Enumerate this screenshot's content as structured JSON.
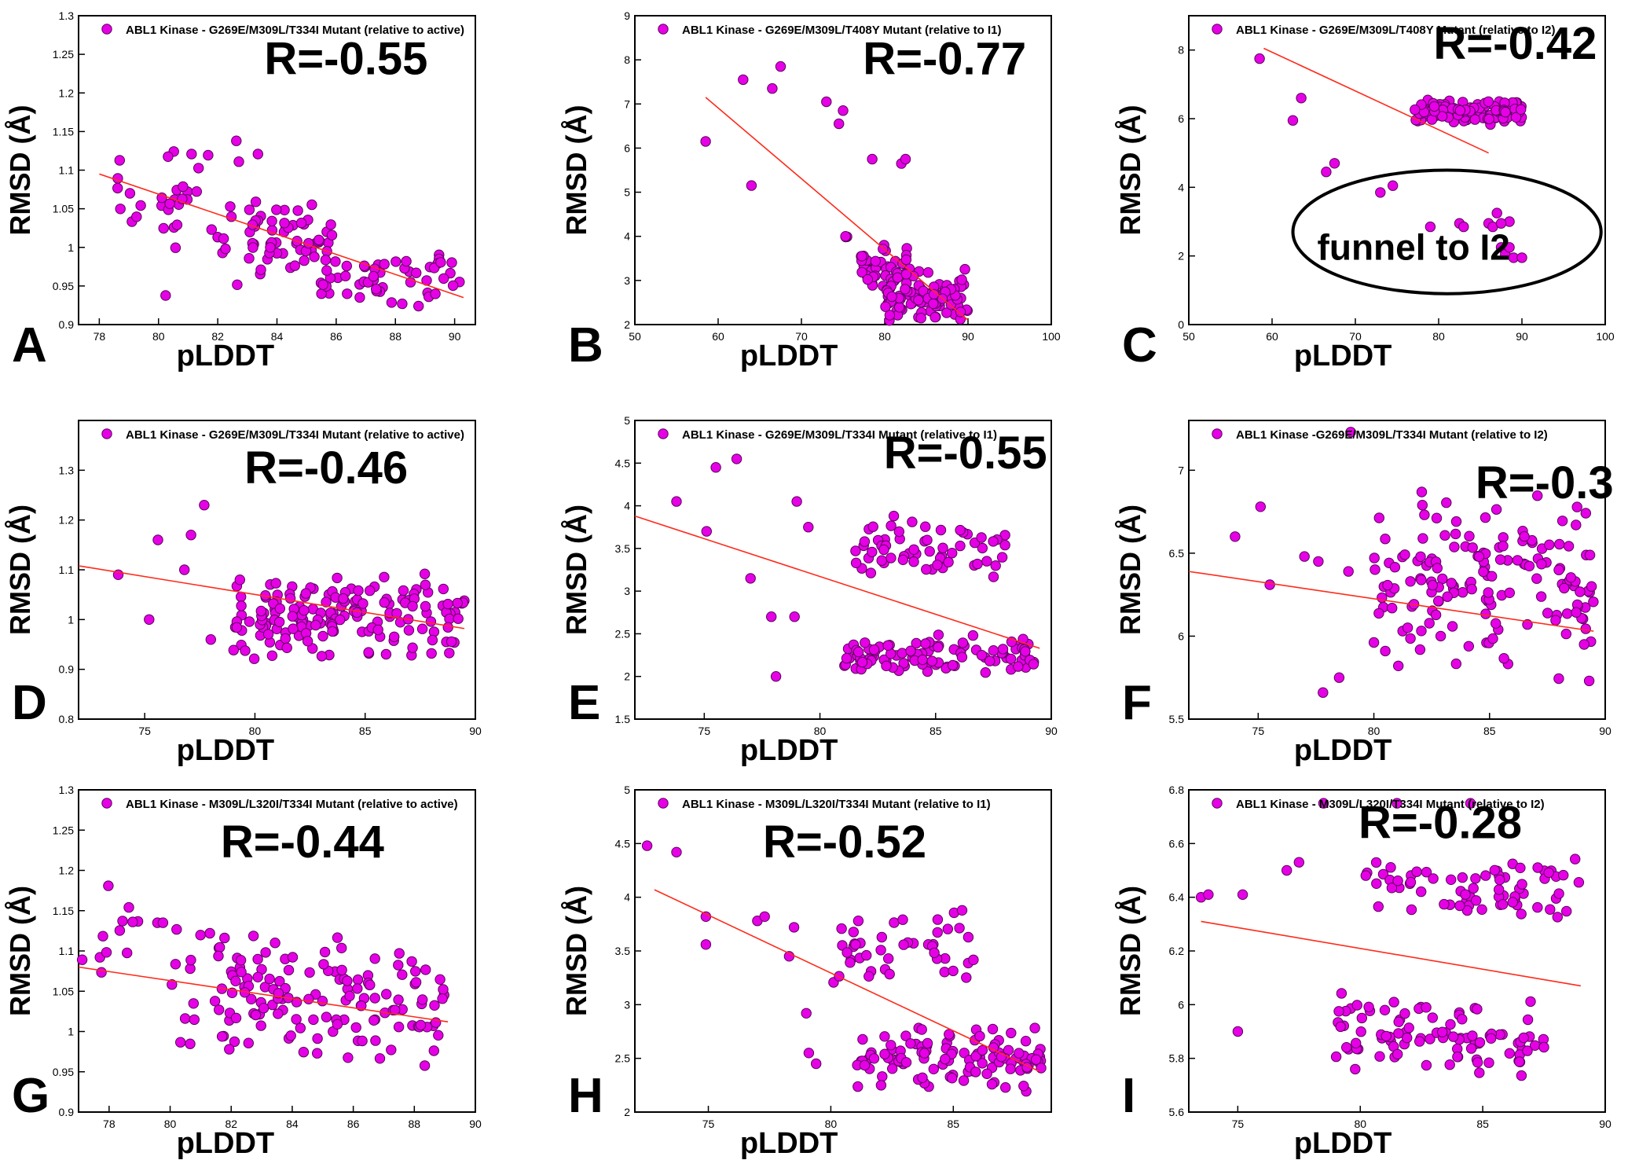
{
  "figure": {
    "y_label": "RMSD (Å)",
    "x_label": "pLDDT",
    "marker_color": "#e600e6",
    "marker_edge": "#5a005a",
    "fit_color": "#ff2a1a"
  },
  "chart_data": [
    {
      "panel": "A",
      "type": "scatter",
      "title": "ABL1 Kinase - G269E/M309L/T334I Mutant  (relative to active)",
      "r_label": "R=-0.55",
      "xlim": [
        77.3,
        90.7
      ],
      "ylim": [
        0.9,
        1.3
      ],
      "xticks": [
        78,
        80,
        82,
        84,
        86,
        88,
        90
      ],
      "yticks": [
        0.9,
        0.95,
        1,
        1.05,
        1.1,
        1.15,
        1.2,
        1.25,
        1.3
      ],
      "fit": [
        [
          78,
          1.095
        ],
        [
          90.3,
          0.935
        ]
      ],
      "seed": 11,
      "n": 150,
      "clusters": [
        [
          78.5,
          81,
          0.98,
          1.15,
          12
        ],
        [
          80,
          83.5,
          0.93,
          1.18,
          30
        ],
        [
          83,
          86,
          0.94,
          1.07,
          55
        ],
        [
          85.5,
          90.2,
          0.92,
          1.0,
          53
        ]
      ]
    },
    {
      "panel": "B",
      "type": "scatter",
      "title": "ABL1 Kinase - G269E/M309L/T408Y Mutant  (relative to I1)",
      "r_label": "R=-0.77",
      "xlim": [
        50,
        100
      ],
      "ylim": [
        2,
        9
      ],
      "xticks": [
        50,
        60,
        70,
        80,
        90,
        100
      ],
      "yticks": [
        2,
        3,
        4,
        5,
        6,
        7,
        8,
        9
      ],
      "fit": [
        [
          58.5,
          7.15
        ],
        [
          90,
          2.1
        ]
      ],
      "seed": 23,
      "n": 150,
      "clusters": [
        [
          77,
          83,
          2.6,
          4.0,
          40
        ],
        [
          80,
          90,
          2.0,
          3.3,
          100
        ],
        [
          75,
          76,
          3.9,
          4.1,
          3
        ]
      ],
      "extras": [
        [
          58.5,
          6.15
        ],
        [
          63,
          7.55
        ],
        [
          64,
          5.15
        ],
        [
          66.5,
          7.35
        ],
        [
          67.5,
          7.85
        ],
        [
          73,
          7.05
        ],
        [
          74.5,
          6.55
        ],
        [
          75,
          6.85
        ],
        [
          78.5,
          5.75
        ],
        [
          82,
          5.65
        ],
        [
          82.5,
          5.75
        ]
      ]
    },
    {
      "panel": "C",
      "type": "scatter",
      "title": "ABL1 Kinase - G269E/M309L/T408Y Mutant  (relative to I2)",
      "r_label": "R=-0.42",
      "annotation": "funnel to I2",
      "xlim": [
        50,
        100
      ],
      "ylim": [
        0,
        9
      ],
      "xticks": [
        50,
        60,
        70,
        80,
        90,
        100
      ],
      "yticks": [
        0,
        2,
        4,
        6,
        8
      ],
      "fit": [
        [
          59,
          8.05
        ],
        [
          86,
          5.0
        ]
      ],
      "seed": 37,
      "n": 140,
      "clusters": [
        [
          77,
          90,
          5.8,
          6.6,
          130
        ]
      ],
      "extras": [
        [
          58.5,
          7.75
        ],
        [
          62.5,
          5.95
        ],
        [
          63.5,
          6.6
        ],
        [
          66.5,
          4.45
        ],
        [
          67.5,
          4.7
        ],
        [
          73,
          3.85
        ],
        [
          74.5,
          4.05
        ],
        [
          79,
          2.85
        ],
        [
          82.5,
          2.95
        ],
        [
          83,
          2.85
        ],
        [
          86,
          2.95
        ],
        [
          86.5,
          2.85
        ],
        [
          87,
          3.25
        ],
        [
          87.5,
          2.25
        ],
        [
          88,
          2.05
        ],
        [
          88.5,
          3.0
        ],
        [
          89,
          1.95
        ],
        [
          90,
          1.95
        ],
        [
          87.5,
          2.95
        ],
        [
          88.5,
          2.25
        ]
      ]
    },
    {
      "panel": "D",
      "type": "scatter",
      "title": "ABL1 Kinase - G269E/M309L/T334I Mutant  (relative to active)",
      "r_label": "R=-0.46",
      "xlim": [
        72,
        90
      ],
      "ylim": [
        0.8,
        1.4
      ],
      "xticks": [
        75,
        80,
        85,
        90
      ],
      "yticks": [
        0.8,
        0.9,
        1,
        1.1,
        1.2,
        1.3
      ],
      "fit": [
        [
          72,
          1.108
        ],
        [
          89.5,
          0.982
        ]
      ],
      "seed": 51,
      "n": 175,
      "clusters": [
        [
          79,
          89.5,
          0.91,
          1.1,
          165
        ]
      ],
      "extras": [
        [
          72,
          1.22
        ],
        [
          73.8,
          1.09
        ],
        [
          75.2,
          1.0
        ],
        [
          75.6,
          1.16
        ],
        [
          76.8,
          1.1
        ],
        [
          77.1,
          1.17
        ],
        [
          77.7,
          1.23
        ],
        [
          78,
          0.96
        ]
      ]
    },
    {
      "panel": "E",
      "type": "scatter",
      "title": "ABL1 Kinase - G269E/M309L/T334I Mutant  (relative to I1)",
      "r_label": "R=-0.55",
      "xlim": [
        72,
        90
      ],
      "ylim": [
        1.5,
        5
      ],
      "xticks": [
        75,
        80,
        85,
        90
      ],
      "yticks": [
        1.5,
        2,
        2.5,
        3,
        3.5,
        4,
        4.5,
        5
      ],
      "fit": [
        [
          72,
          3.88
        ],
        [
          89.5,
          2.33
        ]
      ],
      "seed": 63,
      "n": 175,
      "clusters": [
        [
          81.5,
          88,
          3.1,
          3.9,
          60
        ],
        [
          81,
          89.5,
          2.0,
          2.55,
          100
        ]
      ],
      "extras": [
        [
          72,
          4.25
        ],
        [
          73.8,
          4.05
        ],
        [
          75.1,
          3.7
        ],
        [
          75.5,
          4.45
        ],
        [
          76.4,
          4.55
        ],
        [
          77,
          3.15
        ],
        [
          77.9,
          2.7
        ],
        [
          78.1,
          2.0
        ],
        [
          78.9,
          2.7
        ],
        [
          79,
          4.05
        ],
        [
          79.5,
          3.75
        ]
      ]
    },
    {
      "panel": "F",
      "type": "scatter",
      "title": "ABL1 Kinase -G269E/M309L/T334I Mutant  (relative to I2)",
      "r_label": "R=-0.3",
      "xlim": [
        72,
        90
      ],
      "ylim": [
        5.5,
        7.3
      ],
      "xticks": [
        75,
        80,
        85,
        90
      ],
      "yticks": [
        5.5,
        6,
        6.5,
        7
      ],
      "fit": [
        [
          72,
          6.39
        ],
        [
          89.5,
          6.03
        ]
      ],
      "seed": 77,
      "n": 175,
      "clusters": [
        [
          80,
          89.5,
          5.65,
          6.9,
          160
        ]
      ],
      "extras": [
        [
          72,
          6.58
        ],
        [
          74,
          6.6
        ],
        [
          75.1,
          6.78
        ],
        [
          75.5,
          6.31
        ],
        [
          77,
          6.48
        ],
        [
          77.6,
          6.45
        ],
        [
          77.8,
          5.66
        ],
        [
          78.5,
          5.75
        ],
        [
          78.9,
          6.39
        ],
        [
          79,
          7.23
        ]
      ]
    },
    {
      "panel": "G",
      "type": "scatter",
      "title": "ABL1 Kinase - M309L/L320I/T334I Mutant  (relative to active)",
      "r_label": "R=-0.44",
      "xlim": [
        77,
        90
      ],
      "ylim": [
        0.9,
        1.3
      ],
      "xticks": [
        78,
        80,
        82,
        84,
        86,
        88,
        90
      ],
      "yticks": [
        0.9,
        0.95,
        1,
        1.05,
        1.1,
        1.15,
        1.2,
        1.25,
        1.3
      ],
      "fit": [
        [
          77,
          1.08
        ],
        [
          89.1,
          1.012
        ]
      ],
      "seed": 89,
      "n": 170,
      "clusters": [
        [
          80,
          89,
          0.95,
          1.14,
          150
        ],
        [
          77,
          80,
          1.05,
          1.2,
          15
        ]
      ]
    },
    {
      "panel": "H",
      "type": "scatter",
      "title": "ABL1 Kinase - M309L/L320I/T334I Mutant  (relative to I1)",
      "r_label": "R=-0.52",
      "xlim": [
        72,
        89
      ],
      "ylim": [
        2,
        5
      ],
      "xticks": [
        75,
        80,
        85
      ],
      "yticks": [
        2,
        2.5,
        3,
        3.5,
        4,
        4.5,
        5
      ],
      "fit": [
        [
          72.8,
          4.07
        ],
        [
          88.5,
          2.38
        ]
      ],
      "seed": 97,
      "n": 170,
      "clusters": [
        [
          80,
          86,
          3.2,
          3.9,
          45
        ],
        [
          81,
          88.6,
          2.15,
          2.8,
          110
        ]
      ],
      "extras": [
        [
          72.5,
          4.48
        ],
        [
          73.7,
          4.42
        ],
        [
          74.9,
          3.82
        ],
        [
          74.9,
          3.56
        ],
        [
          77,
          3.78
        ],
        [
          77.3,
          3.82
        ],
        [
          78.3,
          3.45
        ],
        [
          78.5,
          3.72
        ],
        [
          79,
          2.92
        ],
        [
          79.1,
          2.55
        ],
        [
          79.4,
          2.45
        ]
      ]
    },
    {
      "panel": "I",
      "type": "scatter",
      "title": "ABL1 Kinase - M309L/L320I/T334I Mutant  (relative to I2)",
      "r_label": "R=-0.28",
      "xlim": [
        73,
        90
      ],
      "ylim": [
        5.6,
        6.8
      ],
      "xticks": [
        75,
        80,
        85,
        90
      ],
      "yticks": [
        5.6,
        5.8,
        6,
        6.2,
        6.4,
        6.6,
        6.8
      ],
      "fit": [
        [
          73.5,
          6.31
        ],
        [
          89,
          6.07
        ]
      ],
      "seed": 103,
      "n": 175,
      "clusters": [
        [
          80,
          89,
          6.3,
          6.55,
          70
        ],
        [
          79,
          87.5,
          5.7,
          6.05,
          95
        ]
      ],
      "extras": [
        [
          73.5,
          6.4
        ],
        [
          73.8,
          6.41
        ],
        [
          75,
          5.9
        ],
        [
          75.2,
          6.41
        ],
        [
          77,
          6.5
        ],
        [
          77.5,
          6.53
        ],
        [
          78.5,
          6.75
        ],
        [
          81.5,
          6.75
        ],
        [
          84.5,
          6.75
        ]
      ]
    }
  ]
}
